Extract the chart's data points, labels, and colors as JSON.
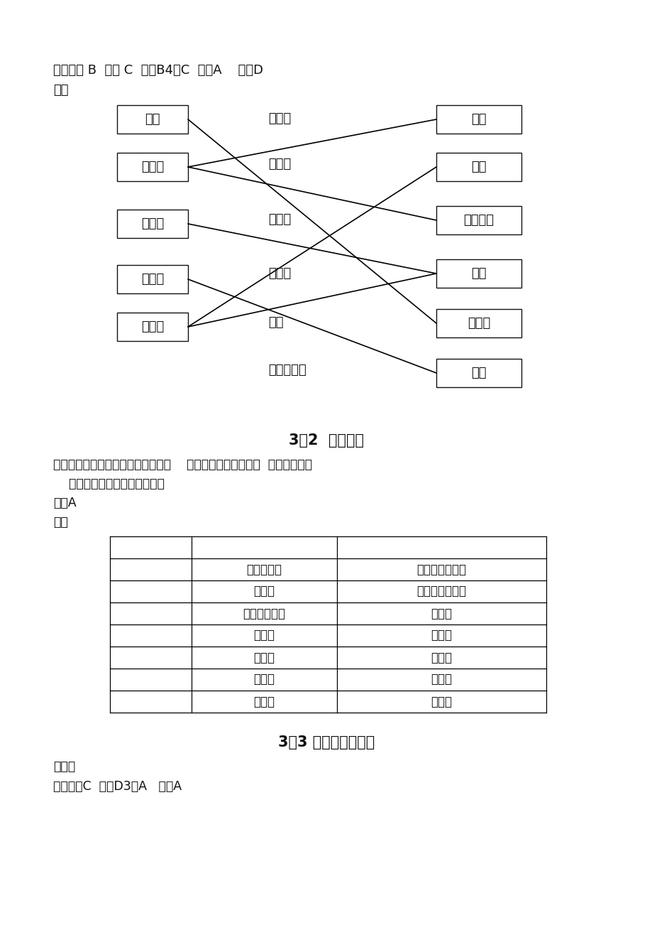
{
  "background_color": "#ffffff",
  "section1_line1": "三、１、 B  ２、 C  ３、B4、C  ５、A    ６、D",
  "section1_line2": "四、",
  "left_boxes": [
    "山东",
    "吉林省",
    "湖南省",
    "青海省",
    "海南省"
  ],
  "middle_labels": [
    "寒温带",
    "中温带",
    "暖温带",
    "亚热带",
    "热带",
    "青藏高寒区"
  ],
  "right_boxes": [
    "太原",
    "拉萨",
    "呼和浩特",
    "南昌",
    "哈尔滨",
    "贵阳"
  ],
  "line_connections": [
    [
      0,
      0,
      4
    ],
    [
      1,
      1,
      2
    ],
    [
      1,
      0,
      0
    ],
    [
      2,
      2,
      3
    ],
    [
      3,
      5,
      5
    ],
    [
      4,
      3,
      3
    ],
    [
      4,
      4,
      5
    ]
  ],
  "section2_title": "3．2  降水分布",
  "section2_lines": [
    "一、１、广州、上海、北京、哈尔滨    ２、夏季多，冬季少；  东南多西北少",
    "    ３、早、晚、长；晚、早、短",
    "二、A",
    "三、"
  ],
  "table_col1": [
    "",
    "青藏高寒区",
    "暖温带",
    "亚热带、热带",
    "亚热带",
    "中温带",
    "暖温带",
    "亚热带"
  ],
  "table_col2": [
    "",
    "半干旱、干旱区",
    "半湿润、湿润区",
    "湿润区",
    "湿润区",
    "湿润区",
    "干旱区",
    "湿润区"
  ],
  "section3_title": "3．3 气候的主要特点",
  "section3_lines": [
    "一、略",
    "二、１、C  ２、D3、A   ４、A"
  ]
}
